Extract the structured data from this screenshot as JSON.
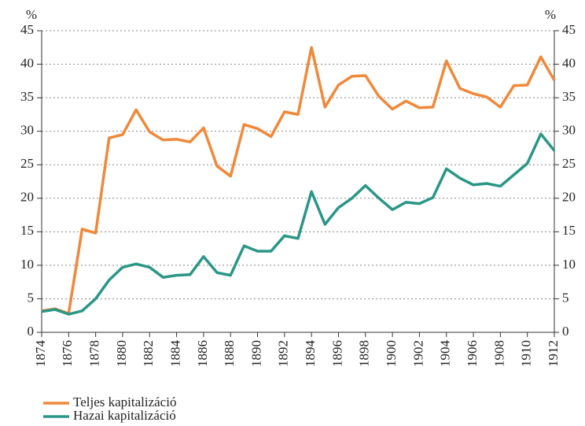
{
  "chart_data": {
    "type": "line",
    "ylabel": "%",
    "y2label": "%",
    "x": [
      1874,
      1875,
      1876,
      1877,
      1878,
      1879,
      1880,
      1881,
      1882,
      1883,
      1884,
      1885,
      1886,
      1887,
      1888,
      1889,
      1890,
      1891,
      1892,
      1893,
      1894,
      1895,
      1896,
      1897,
      1898,
      1899,
      1900,
      1901,
      1902,
      1903,
      1904,
      1905,
      1906,
      1907,
      1908,
      1909,
      1910,
      1911,
      1912
    ],
    "xlim": [
      1874,
      1912
    ],
    "xticks": [
      1874,
      1876,
      1878,
      1880,
      1882,
      1884,
      1886,
      1888,
      1890,
      1892,
      1894,
      1896,
      1898,
      1900,
      1902,
      1904,
      1906,
      1908,
      1910,
      1912
    ],
    "ylim": [
      0,
      45
    ],
    "yticks": [
      0,
      5,
      10,
      15,
      20,
      25,
      30,
      35,
      40,
      45
    ],
    "y2lim": [
      0,
      45
    ],
    "y2ticks": [
      0,
      5,
      10,
      15,
      20,
      25,
      30,
      35,
      40,
      45
    ],
    "grid": true,
    "legend": "bottom-left",
    "series": [
      {
        "name": "Teljes kapitalizáció",
        "color": "#f0883a",
        "values": [
          3.2,
          3.5,
          2.8,
          15.4,
          14.8,
          29.0,
          29.5,
          33.2,
          29.9,
          28.7,
          28.8,
          28.4,
          30.5,
          24.8,
          23.3,
          31.0,
          30.4,
          29.2,
          32.9,
          32.5,
          42.5,
          33.6,
          36.9,
          38.2,
          38.3,
          35.2,
          33.3,
          34.5,
          33.5,
          33.6,
          40.5,
          36.4,
          35.6,
          35.1,
          33.6,
          36.8,
          36.9,
          41.1,
          37.6
        ]
      },
      {
        "name": "Hazai kapitalizáció",
        "color": "#2a9686",
        "values": [
          3.1,
          3.4,
          2.7,
          3.2,
          5.0,
          7.8,
          9.7,
          10.2,
          9.7,
          8.2,
          8.5,
          8.6,
          11.3,
          8.9,
          8.5,
          12.9,
          12.1,
          12.1,
          14.4,
          14.0,
          21.0,
          16.1,
          18.6,
          20.0,
          21.9,
          20.0,
          18.3,
          19.4,
          19.2,
          20.1,
          24.4,
          23.0,
          22.0,
          22.2,
          21.8,
          23.5,
          25.2,
          29.6,
          27.1
        ]
      }
    ]
  }
}
